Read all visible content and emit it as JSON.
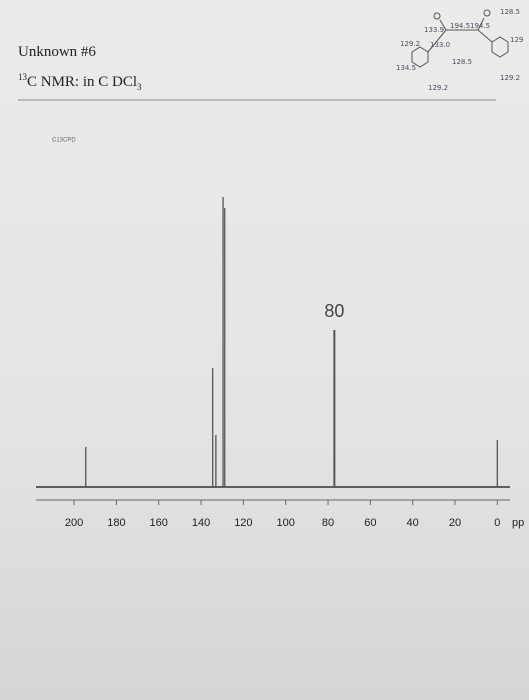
{
  "header": {
    "title": "Unknown #6",
    "nmr_sup": "13",
    "nmr_main": "C NMR: in C DCl",
    "nmr_sub": "3"
  },
  "structure_notes": [
    "129.2",
    "133.9",
    "194.5",
    "194.5",
    "128.5",
    "129",
    "134.5",
    "133.0",
    "128.5",
    "129.2",
    "129.2"
  ],
  "chart_data": {
    "type": "spectrum",
    "title": "C13CPD",
    "xlabel": "pp",
    "x": [
      194.5,
      134.5,
      133.0,
      129.6,
      128.8,
      77,
      0
    ],
    "values": [
      40,
      119,
      52,
      290,
      279,
      157,
      47
    ],
    "color": "#555555",
    "xlim": [
      218,
      -6
    ],
    "ylim": [
      0,
      300
    ],
    "xticks": [
      200,
      180,
      160,
      140,
      120,
      100,
      80,
      60,
      40,
      20,
      0
    ],
    "annotations": [
      {
        "text": "80",
        "x": 77
      }
    ]
  }
}
